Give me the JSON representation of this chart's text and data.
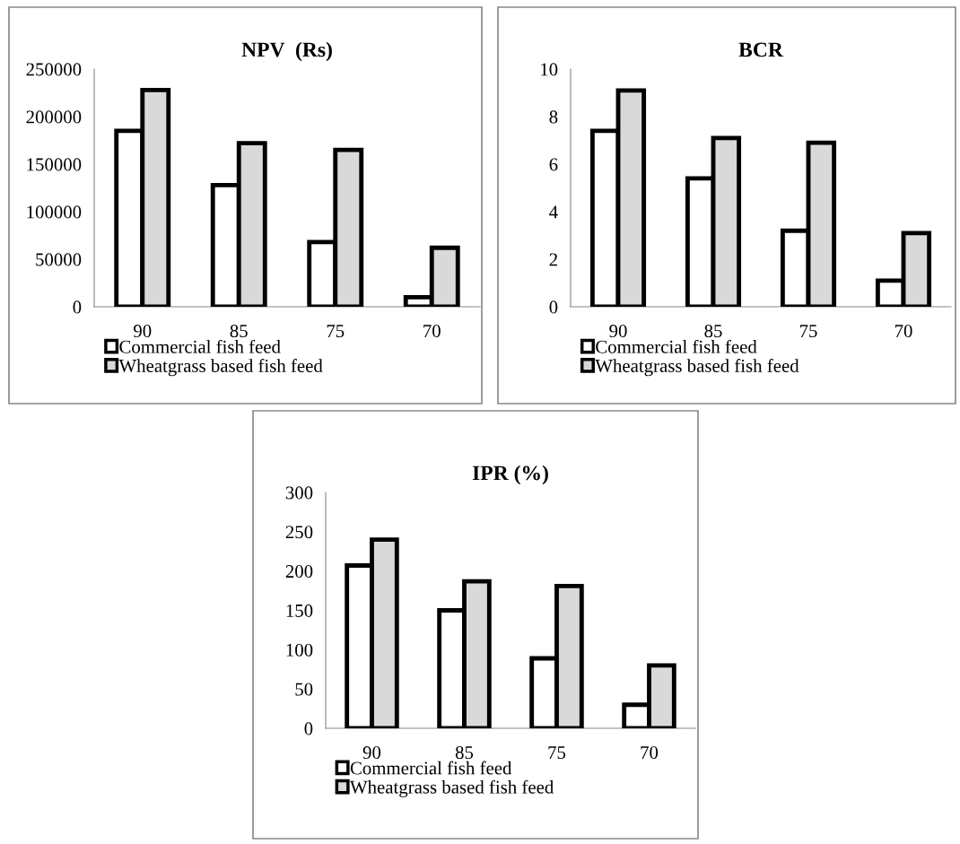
{
  "chart_data": [
    {
      "type": "bar",
      "title": "NPV  (Rs)",
      "categories": [
        "90",
        "85",
        "75",
        "70"
      ],
      "ylim": [
        0,
        250000
      ],
      "yticks": [
        0,
        50000,
        100000,
        150000,
        200000,
        250000
      ],
      "legend": "bottom",
      "grid": false,
      "series": [
        {
          "name": "Commercial fish feed",
          "color": "#ffffff",
          "values": [
            185000,
            128000,
            68000,
            10000
          ]
        },
        {
          "name": "Wheatgrass based fish feed",
          "color": "#d9d9d9",
          "values": [
            228000,
            172000,
            165000,
            62000
          ]
        }
      ]
    },
    {
      "type": "bar",
      "title": "BCR",
      "categories": [
        "90",
        "85",
        "75",
        "70"
      ],
      "ylim": [
        0,
        10
      ],
      "yticks": [
        0,
        2,
        4,
        6,
        8,
        10
      ],
      "legend": "bottom",
      "grid": false,
      "series": [
        {
          "name": "Commercial fish feed",
          "color": "#ffffff",
          "values": [
            7.4,
            5.4,
            3.2,
            1.1
          ]
        },
        {
          "name": "Wheatgrass based fish feed",
          "color": "#d9d9d9",
          "values": [
            9.1,
            7.1,
            6.9,
            3.1
          ]
        }
      ]
    },
    {
      "type": "bar",
      "title": "IPR (%)",
      "categories": [
        "90",
        "85",
        "75",
        "70"
      ],
      "ylim": [
        0,
        300
      ],
      "yticks": [
        0,
        50,
        100,
        150,
        200,
        250,
        300
      ],
      "legend": "bottom",
      "grid": false,
      "series": [
        {
          "name": "Commercial fish feed",
          "color": "#ffffff",
          "values": [
            207,
            150,
            89,
            30
          ]
        },
        {
          "name": "Wheatgrass based fish feed",
          "color": "#d9d9d9",
          "values": [
            240,
            187,
            181,
            80
          ]
        }
      ]
    }
  ]
}
